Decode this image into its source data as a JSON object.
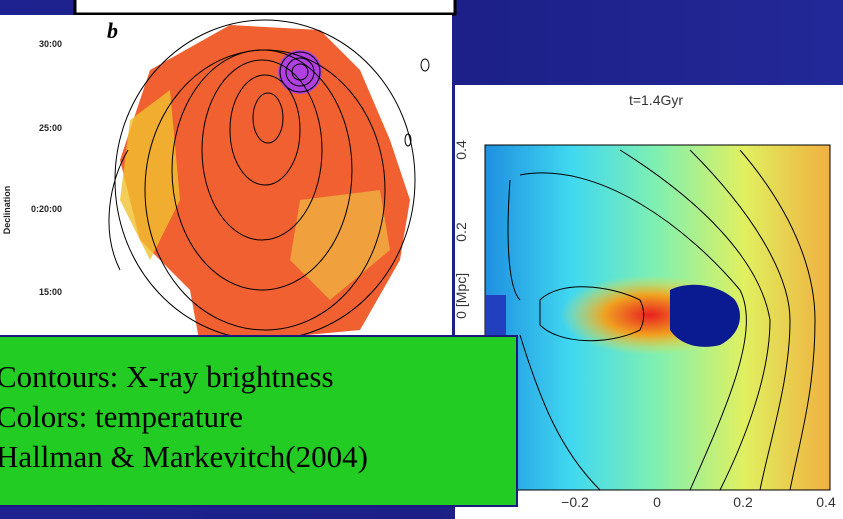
{
  "left_panel": {
    "label": "b",
    "yticks": [
      "30:00",
      "25:00",
      "0:20:00",
      "15:00"
    ],
    "ylabel": "Declination"
  },
  "right_panel": {
    "title": "t=1.4Gyr",
    "yticks": [
      "0.4",
      "0.2",
      "0"
    ],
    "ylabel": "[Mpc]",
    "xticks": [
      "−0.2",
      "0",
      "0.2",
      "0.4"
    ]
  },
  "caption": {
    "lines": [
      "Contours: X-ray brightness",
      "Colors: temperature",
      "Hallman & Markevitch(2004)"
    ]
  }
}
